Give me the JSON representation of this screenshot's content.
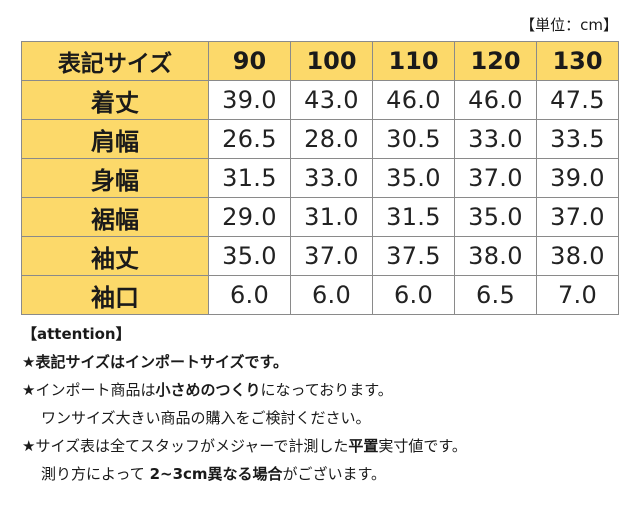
{
  "unit_label": "【単位：cm】",
  "table": {
    "corner": "表記サイズ",
    "sizes": [
      "90",
      "100",
      "110",
      "120",
      "130"
    ],
    "rows": [
      {
        "label": "着丈",
        "values": [
          "39.0",
          "43.0",
          "46.0",
          "46.0",
          "47.5"
        ]
      },
      {
        "label": "肩幅",
        "values": [
          "26.5",
          "28.0",
          "30.5",
          "33.0",
          "33.5"
        ]
      },
      {
        "label": "身幅",
        "values": [
          "31.5",
          "33.0",
          "35.0",
          "37.0",
          "39.0"
        ]
      },
      {
        "label": "裾幅",
        "values": [
          "29.0",
          "31.0",
          "31.5",
          "35.0",
          "37.0"
        ]
      },
      {
        "label": "袖丈",
        "values": [
          "35.0",
          "37.0",
          "37.5",
          "38.0",
          "38.0"
        ]
      },
      {
        "label": "袖口",
        "values": [
          "6.0",
          "6.0",
          "6.0",
          "6.5",
          "7.0"
        ]
      }
    ]
  },
  "notes": {
    "attention": "【attention】",
    "line1": "★表記サイズはインポートサイズです。",
    "line2_pre": "★インポート商品は",
    "line2_bold": "小さめのつくり",
    "line2_post": "になっております。",
    "line3": "ワンサイズ大きい商品の購入をご検討ください。",
    "line4_pre": "★サイズ表は全てスタッフがメジャーで計測した",
    "line4_bold": "平置",
    "line4_post": "実寸値です。",
    "line5_pre": "測り方によって ",
    "line5_bold": "2~3cm異なる場合",
    "line5_post": "がございます。"
  },
  "colors": {
    "header_bg": "#fcd96a",
    "border": "#8a8a8a"
  }
}
